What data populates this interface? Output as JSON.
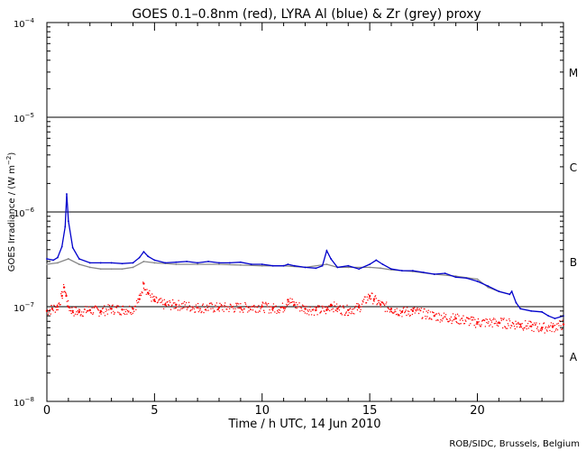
{
  "chart_data": {
    "type": "scatter",
    "title": "GOES 0.1–0.8nm (red), LYRA Al (blue) & Zr (grey) proxy",
    "xlabel": "Time / h UTC, 14 Jun 2010",
    "ylabel_prefix": "GOES Irradiance / (W m",
    "ylabel_sup": "−2",
    "ylabel_suffix": ")",
    "credit": "ROB/SIDC, Brussels, Belgium",
    "xlim": [
      0,
      24
    ],
    "ylim": [
      1e-08,
      0.0001
    ],
    "yscale": "log",
    "x_ticks": [
      {
        "value": 0,
        "label": "0"
      },
      {
        "value": 5,
        "label": "5"
      },
      {
        "value": 10,
        "label": "10"
      },
      {
        "value": 15,
        "label": "15"
      },
      {
        "value": 20,
        "label": "20"
      }
    ],
    "y_ticks": [
      {
        "exp": -8,
        "label_base": "10",
        "label_exp": "−8"
      },
      {
        "exp": -7,
        "label_base": "10",
        "label_exp": "−7"
      },
      {
        "exp": -6,
        "label_base": "10",
        "label_exp": "−6"
      },
      {
        "exp": -5,
        "label_base": "10",
        "label_exp": "−5"
      },
      {
        "exp": -4,
        "label_base": "10",
        "label_exp": "−4"
      }
    ],
    "threshold_lines": [
      1e-07,
      1e-06,
      1e-05
    ],
    "class_labels": [
      {
        "label": "A",
        "value": 3e-08
      },
      {
        "label": "B",
        "value": 3e-07
      },
      {
        "label": "C",
        "value": 3e-06
      },
      {
        "label": "M",
        "value": 3e-05
      }
    ],
    "series": [
      {
        "name": "GOES 0.1-0.8nm",
        "color": "#ff0000",
        "style": "dots",
        "x": [
          0,
          0.25,
          0.5,
          0.7,
          0.8,
          0.9,
          1.0,
          1.2,
          1.5,
          2,
          2.5,
          3,
          3.5,
          4,
          4.3,
          4.5,
          4.7,
          5,
          5.5,
          6,
          7,
          8,
          9,
          10,
          10.5,
          11,
          11.2,
          11.5,
          12,
          12.5,
          13,
          13.2,
          13.5,
          14,
          14.5,
          15,
          15.2,
          15.5,
          16,
          16.5,
          17,
          18,
          19,
          20,
          21,
          22,
          22.5,
          23,
          23.5,
          24
        ],
        "y": [
          9e-08,
          9.5e-08,
          1e-07,
          1.3e-07,
          1.6e-07,
          1.3e-07,
          1e-07,
          9e-08,
          8.8e-08,
          9.2e-08,
          9e-08,
          9.5e-08,
          9.3e-08,
          9.5e-08,
          1.2e-07,
          1.75e-07,
          1.4e-07,
          1.15e-07,
          1.05e-07,
          1.05e-07,
          9.8e-08,
          9.8e-08,
          9.8e-08,
          1e-07,
          9.6e-08,
          9.8e-08,
          1.18e-07,
          1.05e-07,
          9.5e-08,
          9.2e-08,
          9.2e-08,
          1.05e-07,
          9.5e-08,
          9.2e-08,
          9.8e-08,
          1.3e-07,
          1.2e-07,
          1.05e-07,
          9.5e-08,
          8.8e-08,
          9e-08,
          8e-08,
          7.5e-08,
          6.8e-08,
          6.8e-08,
          6.5e-08,
          6.2e-08,
          6e-08,
          6.1e-08,
          6.5e-08
        ]
      },
      {
        "name": "LYRA Al proxy",
        "color": "#0000cc",
        "style": "line",
        "x": [
          0,
          0.3,
          0.5,
          0.7,
          0.85,
          0.92,
          1.0,
          1.2,
          1.5,
          2,
          2.5,
          3,
          3.5,
          4,
          4.3,
          4.5,
          4.7,
          5,
          5.5,
          6,
          6.5,
          7,
          7.5,
          8,
          8.5,
          9,
          9.5,
          10,
          10.5,
          11,
          11.2,
          11.5,
          12,
          12.5,
          12.8,
          13,
          13.2,
          13.5,
          14,
          14.5,
          15,
          15.3,
          15.6,
          16,
          16.5,
          17,
          17.5,
          18,
          18.5,
          19,
          19.5,
          20,
          20.5,
          21,
          21.5,
          21.6,
          21.8,
          22,
          22.5,
          23,
          23.3,
          23.6,
          24
        ],
        "y": [
          3.2e-07,
          3.1e-07,
          3.3e-07,
          4.3e-07,
          7e-07,
          1.55e-06,
          8e-07,
          4.2e-07,
          3.2e-07,
          2.9e-07,
          2.9e-07,
          2.9e-07,
          2.85e-07,
          2.9e-07,
          3.3e-07,
          3.8e-07,
          3.4e-07,
          3.1e-07,
          2.9e-07,
          2.95e-07,
          3e-07,
          2.9e-07,
          3e-07,
          2.9e-07,
          2.9e-07,
          2.95e-07,
          2.8e-07,
          2.8e-07,
          2.7e-07,
          2.7e-07,
          2.8e-07,
          2.7e-07,
          2.6e-07,
          2.55e-07,
          2.7e-07,
          3.9e-07,
          3.2e-07,
          2.6e-07,
          2.7e-07,
          2.5e-07,
          2.8e-07,
          3.1e-07,
          2.8e-07,
          2.5e-07,
          2.4e-07,
          2.4e-07,
          2.3e-07,
          2.2e-07,
          2.25e-07,
          2.05e-07,
          2e-07,
          1.85e-07,
          1.65e-07,
          1.45e-07,
          1.35e-07,
          1.45e-07,
          1.1e-07,
          9.5e-08,
          9e-08,
          8.8e-08,
          8e-08,
          7.5e-08,
          8e-08
        ]
      },
      {
        "name": "LYRA Zr proxy",
        "color": "#888888",
        "style": "line",
        "x": [
          0,
          0.5,
          1,
          1.5,
          2,
          2.5,
          3,
          3.5,
          4,
          4.5,
          5,
          6,
          7,
          8,
          9,
          10,
          11,
          12,
          13,
          13.5,
          14,
          15,
          15.5,
          16,
          17,
          18,
          19,
          20,
          20.5,
          21,
          21.5
        ],
        "y": [
          2.8e-07,
          2.9e-07,
          3.2e-07,
          2.8e-07,
          2.6e-07,
          2.5e-07,
          2.5e-07,
          2.5e-07,
          2.6e-07,
          3e-07,
          2.9e-07,
          2.8e-07,
          2.8e-07,
          2.8e-07,
          2.75e-07,
          2.7e-07,
          2.7e-07,
          2.6e-07,
          2.8e-07,
          2.6e-07,
          2.6e-07,
          2.6e-07,
          2.55e-07,
          2.45e-07,
          2.35e-07,
          2.2e-07,
          2.1e-07,
          1.95e-07,
          1.6e-07,
          1.45e-07,
          1.35e-07
        ]
      }
    ]
  }
}
